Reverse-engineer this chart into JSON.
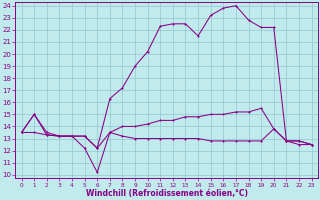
{
  "xlabel": "Windchill (Refroidissement éolien,°C)",
  "bg_color": "#c0eaec",
  "grid_color": "#90c8d0",
  "line_color": "#880088",
  "xlim": [
    0,
    23
  ],
  "ylim": [
    10,
    24
  ],
  "xticks": [
    0,
    1,
    2,
    3,
    4,
    5,
    6,
    7,
    8,
    9,
    10,
    11,
    12,
    13,
    14,
    15,
    16,
    17,
    18,
    19,
    20,
    21,
    22,
    23
  ],
  "yticks": [
    10,
    11,
    12,
    13,
    14,
    15,
    16,
    17,
    18,
    19,
    20,
    21,
    22,
    23,
    24
  ],
  "series": [
    {
      "x": [
        0,
        1,
        2,
        3,
        4,
        5,
        6,
        7,
        8,
        9,
        10,
        11,
        12,
        13,
        14,
        15,
        16,
        17,
        18,
        19,
        20,
        21,
        22,
        23
      ],
      "y": [
        13.5,
        15.0,
        13.5,
        13.2,
        13.2,
        13.2,
        12.2,
        16.3,
        17.2,
        19.0,
        20.2,
        22.3,
        22.5,
        22.5,
        21.5,
        23.2,
        23.8,
        24.0,
        22.8,
        22.2,
        22.2,
        12.8,
        12.8,
        12.5
      ]
    },
    {
      "x": [
        0,
        1,
        2,
        3,
        4,
        5,
        6,
        7,
        8,
        9,
        10,
        11,
        12,
        13,
        14,
        15,
        16,
        17,
        18,
        19,
        20,
        21,
        22,
        23
      ],
      "y": [
        13.5,
        13.5,
        13.3,
        13.2,
        13.2,
        13.2,
        12.2,
        13.5,
        14.0,
        14.0,
        14.2,
        14.5,
        14.5,
        14.8,
        14.8,
        15.0,
        15.0,
        15.2,
        15.2,
        15.5,
        13.8,
        12.8,
        12.8,
        12.5
      ]
    },
    {
      "x": [
        0,
        1,
        2,
        3,
        4,
        5,
        6,
        7,
        8,
        9,
        10,
        11,
        12,
        13,
        14,
        15,
        16,
        17,
        18,
        19,
        20,
        21,
        22,
        23
      ],
      "y": [
        13.5,
        15.0,
        13.3,
        13.2,
        13.2,
        12.2,
        10.2,
        13.5,
        13.2,
        13.0,
        13.0,
        13.0,
        13.0,
        13.0,
        13.0,
        12.8,
        12.8,
        12.8,
        12.8,
        12.8,
        13.8,
        12.8,
        12.5,
        12.5
      ]
    }
  ],
  "markersize": 2.0,
  "linewidth": 0.75,
  "tick_fontsize": 5.0,
  "xlabel_fontsize": 5.5
}
